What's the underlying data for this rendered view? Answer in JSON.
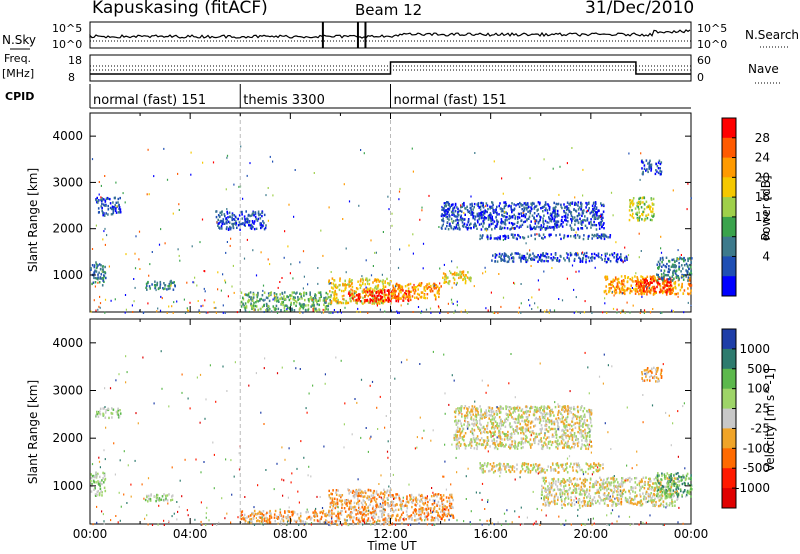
{
  "header": {
    "station": "Kapuskasing (fitACF)",
    "beam": "Beam 12",
    "date": "31/Dec/2010"
  },
  "top_panels": {
    "nsky_label": "N.Sky",
    "nsearch_label": "N.Search",
    "freq_label_1": "Freq.",
    "freq_label_2": "[MHz]",
    "nave_label": "Nave",
    "cpid_label": "CPID",
    "left_ticks_noise": [
      "10^5",
      "10^0"
    ],
    "right_ticks_noise": [
      "10^5",
      "10^0"
    ],
    "left_ticks_freq": [
      "18",
      "8"
    ],
    "right_ticks_nave": [
      "60",
      "0"
    ]
  },
  "cpid_modes": [
    {
      "label": "normal (fast) 151",
      "start": 0,
      "end": 6
    },
    {
      "label": "themis 3300",
      "start": 6,
      "end": 12
    },
    {
      "label": "normal (fast) 151",
      "start": 12,
      "end": 24
    }
  ],
  "colorbars": {
    "power": {
      "title": "Power [dB]",
      "ticks": [
        "28",
        "24",
        "20",
        "16",
        "12",
        "8",
        "4"
      ],
      "colors": [
        "#ff0000",
        "#ff5a00",
        "#ff9a00",
        "#f5c800",
        "#9fd04a",
        "#3aa34c",
        "#3d7a8c",
        "#1f4fb4",
        "#0000ff"
      ]
    },
    "velocity": {
      "title": "Velocity [m s^-1]",
      "ticks": [
        "1000",
        "500",
        "100",
        "25",
        "-25",
        "-100",
        "-500",
        "-1000"
      ],
      "colors": [
        "#1e3ea8",
        "#2e7b6e",
        "#5cb84c",
        "#9ed468",
        "#c8c8c8",
        "#f0a428",
        "#ff6a00",
        "#ff1a00",
        "#e00000"
      ]
    }
  },
  "axes": {
    "ylabel": "Slant Range [km]",
    "yticks": [
      "1000",
      "2000",
      "3000",
      "4000"
    ],
    "xticks": [
      "00:00",
      "04:00",
      "08:00",
      "12:00",
      "16:00",
      "20:00",
      "00:00"
    ],
    "xlabel": "Time UT"
  },
  "chart_data": [
    {
      "type": "heatmap",
      "title": "Power [dB]",
      "xlabel": "Time UT",
      "ylabel": "Slant Range [km]",
      "xlim": [
        0,
        24
      ],
      "ylim": [
        200,
        4500
      ],
      "blobs": [
        {
          "t0": 0.0,
          "t1": 0.6,
          "r0": 800,
          "r1": 1300,
          "level": 6
        },
        {
          "t0": 0.2,
          "t1": 1.2,
          "r0": 2300,
          "r1": 2700,
          "level": 7
        },
        {
          "t0": 2.2,
          "t1": 3.4,
          "r0": 700,
          "r1": 900,
          "level": 6
        },
        {
          "t0": 5.0,
          "t1": 7.0,
          "r0": 2000,
          "r1": 2400,
          "level": 7
        },
        {
          "t0": 6.0,
          "t1": 9.6,
          "r0": 250,
          "r1": 650,
          "level": 5
        },
        {
          "t0": 9.5,
          "t1": 12.0,
          "r0": 400,
          "r1": 950,
          "level": 3
        },
        {
          "t0": 10.3,
          "t1": 12.8,
          "r0": 450,
          "r1": 700,
          "level": 0
        },
        {
          "t0": 12.0,
          "t1": 14.0,
          "r0": 500,
          "r1": 850,
          "level": 2
        },
        {
          "t0": 14.0,
          "t1": 15.2,
          "r0": 850,
          "r1": 1100,
          "level": 3
        },
        {
          "t0": 14.0,
          "t1": 20.5,
          "r0": 2000,
          "r1": 2600,
          "level": 7
        },
        {
          "t0": 15.5,
          "t1": 20.8,
          "r0": 1800,
          "r1": 1900,
          "level": 7
        },
        {
          "t0": 16.0,
          "t1": 21.5,
          "r0": 1300,
          "r1": 1500,
          "level": 7
        },
        {
          "t0": 20.5,
          "t1": 24.0,
          "r0": 600,
          "r1": 1000,
          "level": 2
        },
        {
          "t0": 21.8,
          "t1": 23.2,
          "r0": 650,
          "r1": 950,
          "level": 0
        },
        {
          "t0": 22.6,
          "t1": 24.0,
          "r0": 900,
          "r1": 1400,
          "level": 6
        },
        {
          "t0": 22.0,
          "t1": 22.8,
          "r0": 3200,
          "r1": 3500,
          "level": 7
        },
        {
          "t0": 21.5,
          "t1": 22.5,
          "r0": 2200,
          "r1": 2700,
          "level": 4
        }
      ]
    },
    {
      "type": "heatmap",
      "title": "Velocity [m s^-1]",
      "xlabel": "Time UT",
      "ylabel": "Slant Range [km]",
      "xlim": [
        0,
        24
      ],
      "ylim": [
        200,
        4500
      ],
      "blobs": [
        {
          "t0": 0.0,
          "t1": 0.6,
          "r0": 800,
          "r1": 1300,
          "level": 3
        },
        {
          "t0": 0.2,
          "t1": 1.2,
          "r0": 2450,
          "r1": 2650,
          "level": 3
        },
        {
          "t0": 2.0,
          "t1": 3.3,
          "r0": 700,
          "r1": 850,
          "level": 3
        },
        {
          "t0": 6.0,
          "t1": 9.5,
          "r0": 250,
          "r1": 500,
          "level": 5
        },
        {
          "t0": 9.5,
          "t1": 12.0,
          "r0": 200,
          "r1": 950,
          "level": 5
        },
        {
          "t0": 12.0,
          "t1": 14.5,
          "r0": 300,
          "r1": 850,
          "level": 5
        },
        {
          "t0": 14.5,
          "t1": 20.0,
          "r0": 1800,
          "r1": 2700,
          "level": 4
        },
        {
          "t0": 15.5,
          "t1": 20.5,
          "r0": 1300,
          "r1": 1500,
          "level": 4
        },
        {
          "t0": 18.0,
          "t1": 23.5,
          "r0": 600,
          "r1": 1200,
          "level": 4
        },
        {
          "t0": 22.6,
          "t1": 24.0,
          "r0": 800,
          "r1": 1300,
          "level": 2
        },
        {
          "t0": 22.0,
          "t1": 22.8,
          "r0": 3200,
          "r1": 3500,
          "level": 5
        }
      ]
    }
  ]
}
